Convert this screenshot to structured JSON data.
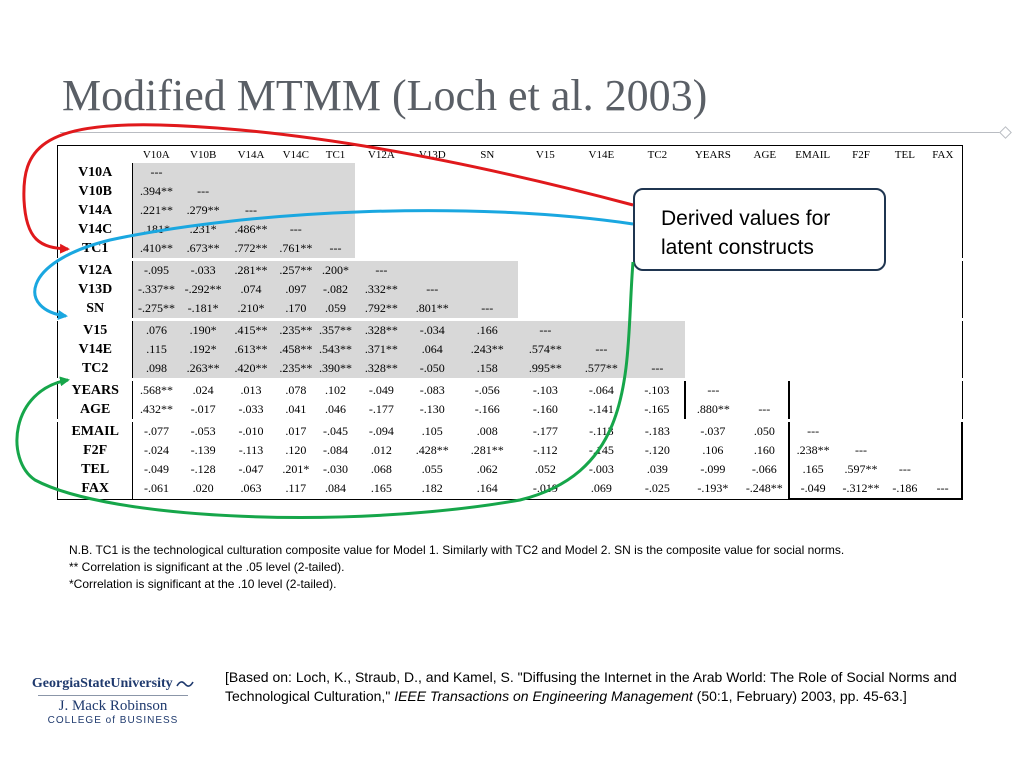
{
  "slide": {
    "title": "Modified MTMM (Loch et al. 2003)"
  },
  "table": {
    "columns": [
      "V10A",
      "V10B",
      "V14A",
      "V14C",
      "TC1",
      "V12A",
      "V13D",
      "SN",
      "V15",
      "V14E",
      "TC2",
      "YEARS",
      "AGE",
      "EMAIL",
      "F2F",
      "TEL",
      "FAX"
    ],
    "rows": [
      {
        "label": "V10A",
        "cells": [
          "---"
        ]
      },
      {
        "label": "V10B",
        "cells": [
          ".394**",
          "---"
        ]
      },
      {
        "label": "V14A",
        "cells": [
          ".221**",
          ".279**",
          "---"
        ]
      },
      {
        "label": "V14C",
        "cells": [
          ".181*",
          ".231*",
          ".486**",
          "---"
        ]
      },
      {
        "label": "TC1",
        "cells": [
          ".410**",
          ".673**",
          ".772**",
          ".761**",
          "---"
        ]
      },
      {
        "label": "V12A",
        "cells": [
          "-.095",
          "-.033",
          ".281**",
          ".257**",
          ".200*",
          "---"
        ]
      },
      {
        "label": "V13D",
        "cells": [
          "-.337**",
          "-.292**",
          ".074",
          ".097",
          "-.082",
          ".332**",
          "---"
        ]
      },
      {
        "label": "SN",
        "cells": [
          "-.275**",
          "-.181*",
          ".210*",
          ".170",
          ".059",
          ".792**",
          ".801**",
          "---"
        ]
      },
      {
        "label": "V15",
        "cells": [
          ".076",
          ".190*",
          ".415**",
          ".235**",
          ".357**",
          ".328**",
          "-.034",
          ".166",
          "---"
        ]
      },
      {
        "label": "V14E",
        "cells": [
          ".115",
          ".192*",
          ".613**",
          ".458**",
          ".543**",
          ".371**",
          ".064",
          ".243**",
          ".574**",
          "---"
        ]
      },
      {
        "label": "TC2",
        "cells": [
          ".098",
          ".263**",
          ".420**",
          ".235**",
          ".390**",
          ".328**",
          "-.050",
          ".158",
          ".995**",
          ".577**",
          "---"
        ]
      },
      {
        "label": "YEARS",
        "cells": [
          ".568**",
          ".024",
          ".013",
          ".078",
          ".102",
          "-.049",
          "-.083",
          "-.056",
          "-.103",
          "-.064",
          "-.103",
          "---"
        ]
      },
      {
        "label": "AGE",
        "cells": [
          ".432**",
          "-.017",
          "-.033",
          ".041",
          ".046",
          "-.177",
          "-.130",
          "-.166",
          "-.160",
          "-.141",
          "-.165",
          ".880**",
          "---"
        ]
      },
      {
        "label": "EMAIL",
        "cells": [
          "-.077",
          "-.053",
          "-.010",
          ".017",
          "-.045",
          "-.094",
          ".105",
          ".008",
          "-.177",
          "-.113",
          "-.183",
          "-.037",
          ".050",
          "---"
        ]
      },
      {
        "label": "F2F",
        "cells": [
          "-.024",
          "-.139",
          "-.113",
          ".120",
          "-.084",
          ".012",
          ".428**",
          ".281**",
          "-.112",
          "-.145",
          "-.120",
          ".106",
          ".160",
          ".238**",
          "---"
        ]
      },
      {
        "label": "TEL",
        "cells": [
          "-.049",
          "-.128",
          "-.047",
          ".201*",
          "-.030",
          ".068",
          ".055",
          ".062",
          ".052",
          "-.003",
          ".039",
          "-.099",
          "-.066",
          ".165",
          ".597**",
          "---"
        ]
      },
      {
        "label": "FAX",
        "cells": [
          "-.061",
          ".020",
          ".063",
          ".117",
          ".084",
          ".165",
          ".182",
          ".164",
          "-.019",
          ".069",
          "-.025",
          "-.193*",
          "-.248**",
          "-.049",
          "-.312**",
          "-.186",
          "---"
        ]
      }
    ]
  },
  "callout": {
    "line1": "Derived values for",
    "line2": "latent constructs"
  },
  "notes": {
    "line1": "N.B. TC1 is the technological culturation composite value for Model 1.  Similarly with TC2 and Model 2.  SN is the composite value for social norms.",
    "line2": "**  Correlation is significant at the .05 level (2-tailed).",
    "line3": "*Correlation is significant at the .10 level (2-tailed)."
  },
  "logo": {
    "university": "GeorgiaStateUniversity",
    "school": "J. Mack Robinson",
    "college": "COLLEGE of BUSINESS"
  },
  "citation": {
    "part1": "[Based on: Loch, K., Straub, D., and Kamel, S. \"Diffusing the Internet in the Arab World: The Role of Social Norms and Technological Culturation,\" ",
    "journal": "IEEE Transactions on Engineering Management",
    "part2": " (50:1, February) 2003, pp. 45-63.]"
  },
  "colors": {
    "title": "#5a5f66",
    "shade": "#d8d8d8",
    "arrow_red": "#e0191c",
    "arrow_cyan": "#1aa7e0",
    "arrow_green": "#16a64a",
    "callout_border": "#1f3550"
  }
}
